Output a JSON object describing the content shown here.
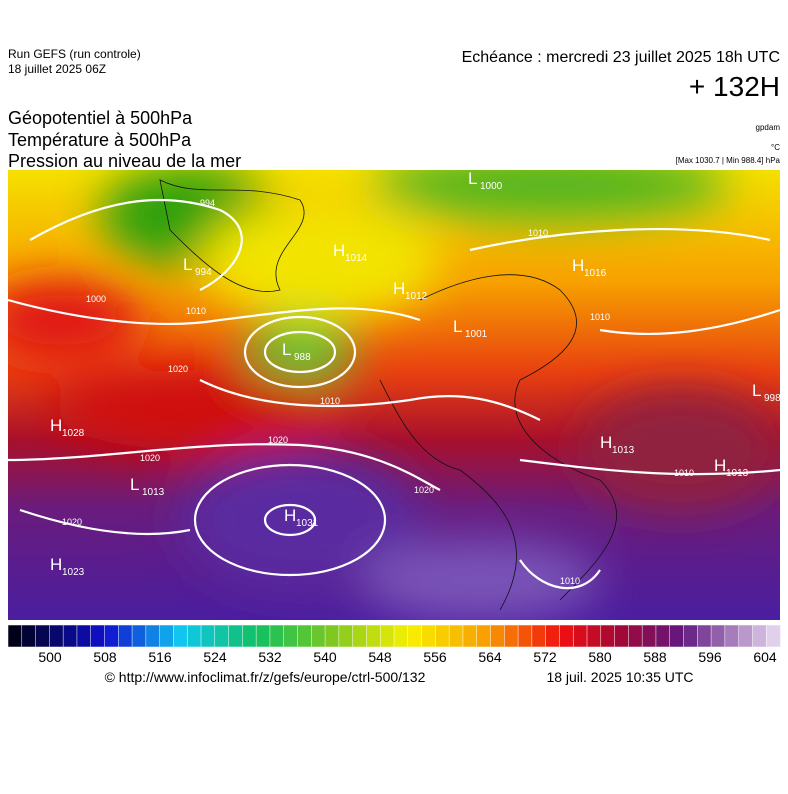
{
  "header": {
    "run": "Run GEFS (run controle)",
    "run_date": "18 juillet 2025 06Z",
    "valid": "Echéance : mercredi 23 juillet 2025 18h UTC",
    "lead": "+ 132H"
  },
  "fields": [
    "Géopotentiel à 500hPa",
    "Température à 500hPa",
    "Pression au niveau de la mer"
  ],
  "units": [
    "gpdam",
    "°C",
    "[Max 1030.7 | Min 988.4] hPa"
  ],
  "centers": [
    {
      "type": "L",
      "value": 994
    },
    {
      "type": "L",
      "value": 1000
    },
    {
      "type": "H",
      "value": 1014
    },
    {
      "type": "H",
      "value": 1012
    },
    {
      "type": "H",
      "value": 1016
    },
    {
      "type": "L",
      "value": 1001
    },
    {
      "type": "L",
      "value": 988
    },
    {
      "type": "L",
      "value": 998
    },
    {
      "type": "H",
      "value": 1028
    },
    {
      "type": "H",
      "value": 1013
    },
    {
      "type": "H",
      "value": 1013
    },
    {
      "type": "L",
      "value": 1013
    },
    {
      "type": "H",
      "value": 1031
    },
    {
      "type": "H",
      "value": 1023
    }
  ],
  "isobar_labels": [
    994,
    1000,
    1010,
    1020,
    1010,
    1020,
    1020,
    1020,
    1020,
    1010,
    1010,
    1010,
    1010
  ],
  "colorbar_ticks": [
    500,
    508,
    516,
    524,
    532,
    540,
    548,
    556,
    564,
    572,
    580,
    588,
    596,
    604
  ],
  "footer": {
    "url": "© http://www.infoclimat.fr/z/gefs/europe/ctrl-500/132",
    "timestamp": "18 juil. 2025 10:35 UTC"
  }
}
